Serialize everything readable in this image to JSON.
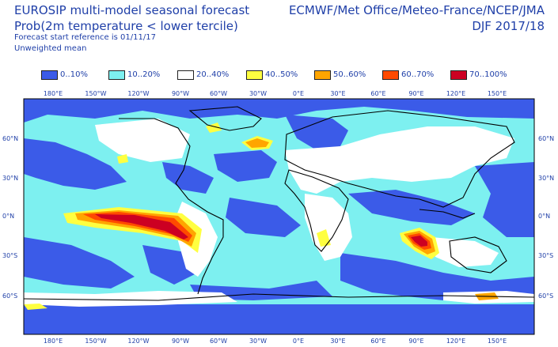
{
  "header": {
    "title_line1": "EUROSIP multi-model seasonal forecast",
    "title_line2": "Prob(2m temperature < lower tercile)",
    "forecast_start": "Forecast start reference is 01/11/17",
    "weighting": "Unweighted mean",
    "centres": "ECMWF/Met Office/Meteo-France/NCEP/JMA",
    "season": "DJF 2017/18"
  },
  "legend": [
    {
      "label": "0..10%",
      "color": "#3b5be8"
    },
    {
      "label": "10..20%",
      "color": "#7df0f0"
    },
    {
      "label": "20..40%",
      "color": "#ffffff"
    },
    {
      "label": "40..50%",
      "color": "#ffff40"
    },
    {
      "label": "50..60%",
      "color": "#ffa500"
    },
    {
      "label": "60..70%",
      "color": "#ff4a00"
    },
    {
      "label": "70..100%",
      "color": "#cc0022"
    }
  ],
  "axes": {
    "lon_ticks": [
      "180°E",
      "150°W",
      "120°W",
      "90°W",
      "60°W",
      "30°W",
      "0°E",
      "30°E",
      "60°E",
      "90°E",
      "120°E",
      "150°E"
    ],
    "lat_ticks": [
      "60°N",
      "30°N",
      "0°N",
      "30°S",
      "60°S"
    ]
  }
}
